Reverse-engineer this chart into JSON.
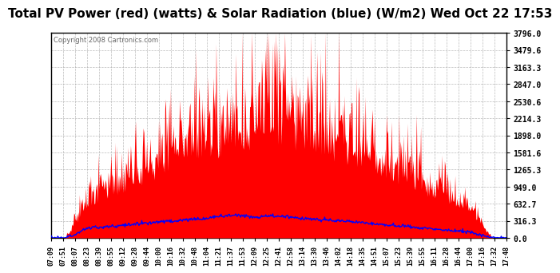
{
  "title": "Total PV Power (red) (watts) & Solar Radiation (blue) (W/m2) Wed Oct 22 17:53",
  "copyright": "Copyright 2008 Cartronics.com",
  "ymax": 3796.0,
  "ymin": 0.0,
  "yticks": [
    0.0,
    316.3,
    632.7,
    949.0,
    1265.3,
    1581.6,
    1898.0,
    2214.3,
    2530.6,
    2847.0,
    3163.3,
    3479.6,
    3796.0
  ],
  "xtick_labels": [
    "07:09",
    "07:51",
    "08:07",
    "08:23",
    "08:39",
    "08:55",
    "09:12",
    "09:28",
    "09:44",
    "10:00",
    "10:16",
    "10:32",
    "10:48",
    "11:04",
    "11:21",
    "11:37",
    "11:53",
    "12:09",
    "12:25",
    "12:41",
    "12:58",
    "13:14",
    "13:30",
    "13:46",
    "14:02",
    "14:18",
    "14:35",
    "14:51",
    "15:07",
    "15:23",
    "15:39",
    "15:55",
    "16:11",
    "16:28",
    "16:44",
    "17:00",
    "17:16",
    "17:32",
    "17:48"
  ],
  "title_fontsize": 11,
  "bg_color": "#ffffff",
  "plot_bg_color": "#ffffff",
  "grid_color": "#aaaaaa",
  "red_fill_color": "#ff0000",
  "blue_line_color": "#0000ff",
  "border_color": "#000000"
}
